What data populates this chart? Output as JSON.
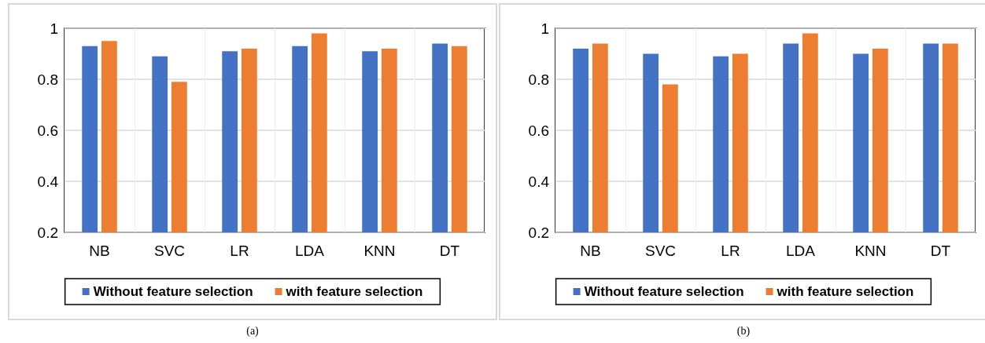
{
  "chart_data": [
    {
      "type": "bar",
      "categories": [
        "NB",
        "SVC",
        "LR",
        "LDA",
        "KNN",
        "DT"
      ],
      "series": [
        {
          "name": "Without feature selection",
          "color": "#4472c4",
          "values": [
            0.93,
            0.89,
            0.91,
            0.93,
            0.91,
            0.94
          ]
        },
        {
          "name": "with feature selection",
          "color": "#ed7d31",
          "values": [
            0.95,
            0.79,
            0.92,
            0.98,
            0.92,
            0.93
          ]
        }
      ],
      "ylim": [
        0.2,
        1
      ],
      "yticks": [
        0.2,
        0.4,
        0.6,
        0.8,
        1
      ],
      "grid": true,
      "legend": "bottom",
      "annotations": [
        "(a)"
      ]
    },
    {
      "type": "bar",
      "categories": [
        "NB",
        "SVC",
        "LR",
        "LDA",
        "KNN",
        "DT"
      ],
      "series": [
        {
          "name": "Without feature selection",
          "color": "#4472c4",
          "values": [
            0.92,
            0.9,
            0.89,
            0.94,
            0.9,
            0.94
          ]
        },
        {
          "name": "with feature selection",
          "color": "#ed7d31",
          "values": [
            0.94,
            0.78,
            0.9,
            0.98,
            0.92,
            0.94
          ]
        }
      ],
      "ylim": [
        0.2,
        1
      ],
      "yticks": [
        0.2,
        0.4,
        0.6,
        0.8,
        1
      ],
      "grid": true,
      "legend": "bottom",
      "annotations": [
        "(b)"
      ]
    }
  ]
}
